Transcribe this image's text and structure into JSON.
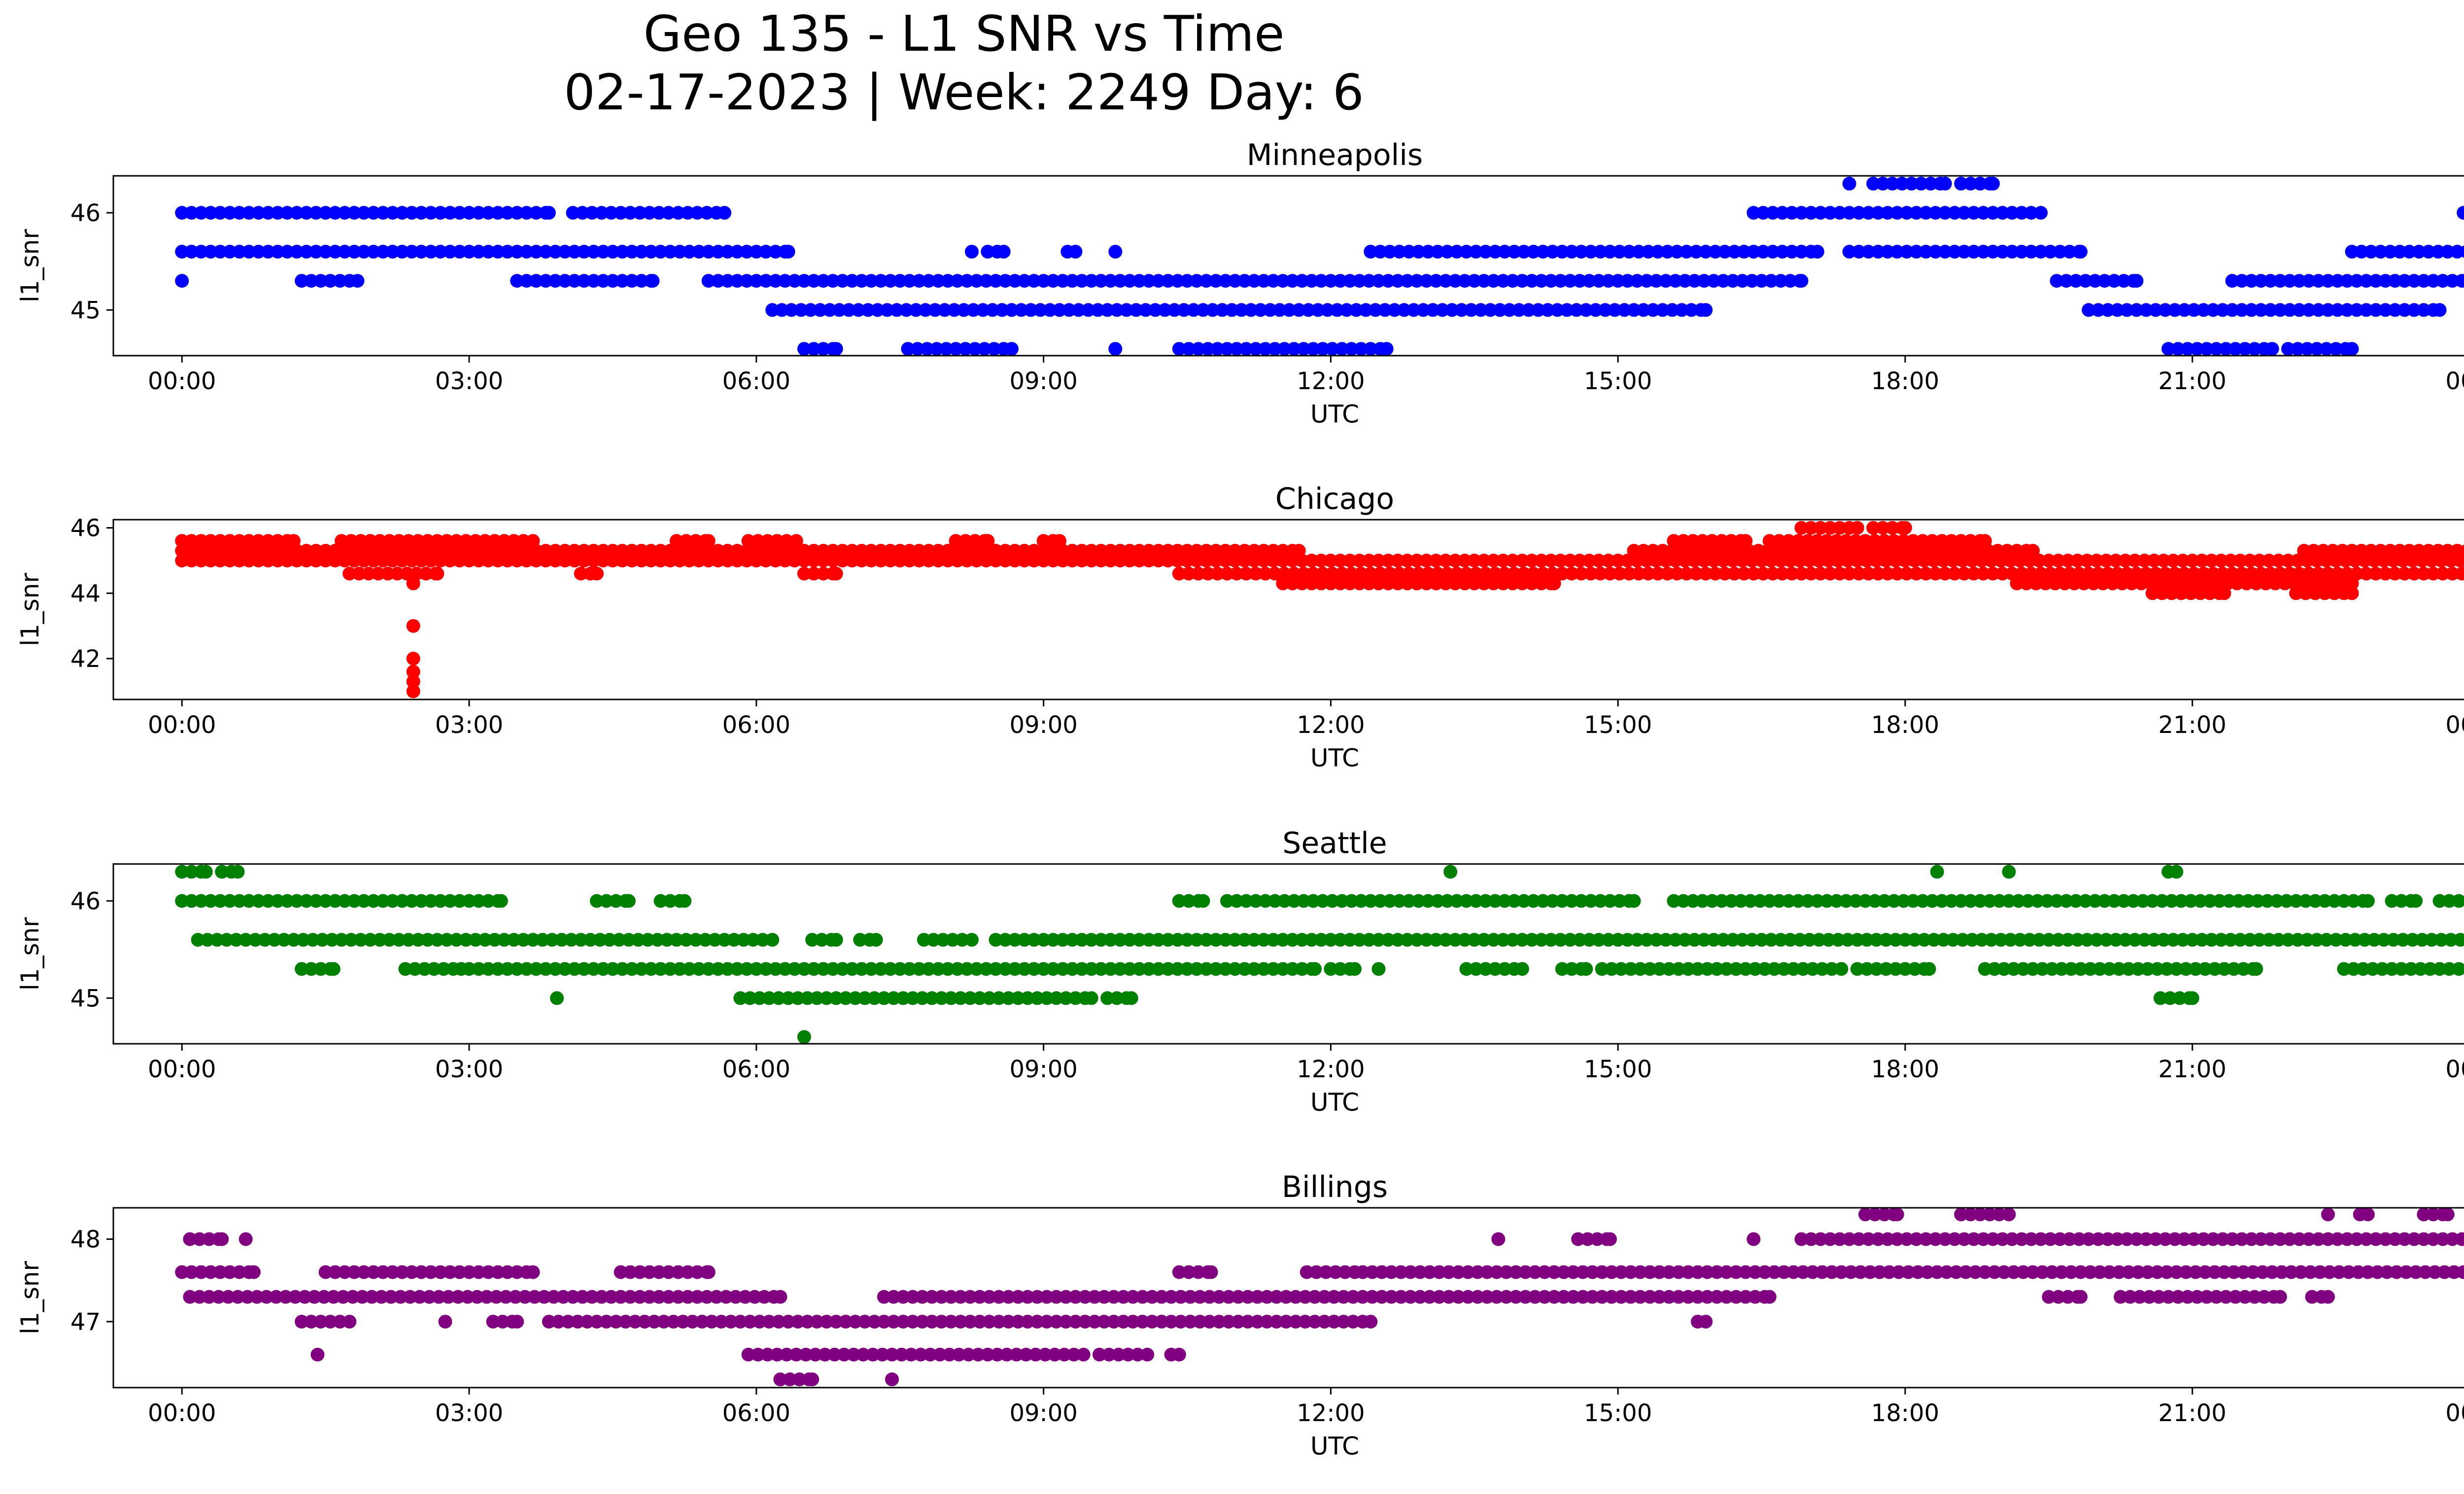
{
  "title": "Geo 135 - L1 SNR vs Time",
  "subtitle": "02-17-2023 | Week: 2249 Day: 6",
  "chart_data": [
    {
      "type": "scatter",
      "title": "Minneapolis",
      "xlabel": "UTC",
      "ylabel": "l1_snr",
      "color": "#0000ff",
      "xlim": [
        "23:17",
        "00:48"
      ],
      "xticks": [
        "00:00",
        "03:00",
        "06:00",
        "09:00",
        "12:00",
        "15:00",
        "18:00",
        "21:00",
        "00:00"
      ],
      "ylim": [
        44.53,
        46.38
      ],
      "yticks": [
        45,
        46
      ],
      "segments": [
        {
          "y": 46.0,
          "x": [
            [
              "00:00",
              "03:50"
            ],
            [
              "04:05",
              "05:40"
            ],
            [
              "16:25",
              "19:25"
            ],
            [
              "23:50",
              "23:50"
            ]
          ]
        },
        {
          "y": 45.6,
          "x": [
            [
              "00:00",
              "06:20"
            ],
            [
              "12:25",
              "17:05"
            ],
            [
              "17:25",
              "19:50"
            ],
            [
              "22:40",
              "24:00"
            ],
            [
              "08:15",
              "08:15"
            ],
            [
              "08:25",
              "08:35"
            ],
            [
              "09:15",
              "09:20"
            ],
            [
              "09:45",
              "09:45"
            ]
          ]
        },
        {
          "y": 45.3,
          "x": [
            [
              "00:00",
              "00:00"
            ],
            [
              "01:15",
              "01:50"
            ],
            [
              "03:30",
              "04:55"
            ],
            [
              "05:30",
              "16:55"
            ],
            [
              "19:35",
              "20:25"
            ],
            [
              "21:25",
              "24:00"
            ]
          ]
        },
        {
          "y": 45.0,
          "x": [
            [
              "06:10",
              "15:55"
            ],
            [
              "19:55",
              "23:35"
            ]
          ]
        },
        {
          "y": 44.6,
          "x": [
            [
              "06:30",
              "06:50"
            ],
            [
              "07:35",
              "08:40"
            ],
            [
              "09:45",
              "09:45"
            ],
            [
              "10:25",
              "12:35"
            ],
            [
              "20:45",
              "21:50"
            ],
            [
              "22:00",
              "22:40"
            ]
          ]
        },
        {
          "y": 46.3,
          "x": [
            [
              "17:25",
              "17:25"
            ],
            [
              "17:40",
              "18:25"
            ],
            [
              "18:35",
              "18:55"
            ]
          ]
        }
      ]
    },
    {
      "type": "scatter",
      "title": "Chicago",
      "xlabel": "UTC",
      "ylabel": "l1_snr",
      "color": "#ff0000",
      "xlim": [
        "23:17",
        "00:48"
      ],
      "xticks": [
        "00:00",
        "03:00",
        "06:00",
        "09:00",
        "12:00",
        "15:00",
        "18:00",
        "21:00",
        "00:00"
      ],
      "ylim": [
        40.75,
        46.25
      ],
      "yticks": [
        42,
        44,
        46
      ],
      "segments": [
        {
          "y": 46.0,
          "x": [
            [
              "16:55",
              "17:30"
            ],
            [
              "17:40",
              "18:00"
            ]
          ]
        },
        {
          "y": 45.6,
          "x": [
            [
              "00:00",
              "01:10"
            ],
            [
              "01:40",
              "03:40"
            ],
            [
              "05:10",
              "05:30"
            ],
            [
              "05:55",
              "06:25"
            ],
            [
              "08:05",
              "08:25"
            ],
            [
              "09:00",
              "09:10"
            ],
            [
              "15:35",
              "16:20"
            ],
            [
              "16:35",
              "18:50"
            ]
          ]
        },
        {
          "y": 45.3,
          "x": [
            [
              "00:00",
              "11:40"
            ],
            [
              "15:10",
              "19:20"
            ],
            [
              "22:10",
              "24:00"
            ]
          ]
        },
        {
          "y": 45.0,
          "x": [
            [
              "00:00",
              "24:00"
            ]
          ]
        },
        {
          "y": 44.6,
          "x": [
            [
              "01:45",
              "02:40"
            ],
            [
              "04:10",
              "04:20"
            ],
            [
              "06:30",
              "06:50"
            ],
            [
              "10:25",
              "24:00"
            ]
          ]
        },
        {
          "y": 44.3,
          "x": [
            [
              "11:30",
              "14:20"
            ],
            [
              "19:10",
              "22:40"
            ]
          ]
        },
        {
          "y": 44.0,
          "x": [
            [
              "20:35",
              "21:20"
            ],
            [
              "22:05",
              "22:40"
            ]
          ]
        },
        {
          "y": 44.3,
          "x": [
            [
              "02:25",
              "02:25"
            ]
          ]
        },
        {
          "y": 43.0,
          "x": [
            [
              "02:25",
              "02:25"
            ]
          ]
        },
        {
          "y": 42.0,
          "x": [
            [
              "02:25",
              "02:25"
            ]
          ]
        },
        {
          "y": 41.6,
          "x": [
            [
              "02:25",
              "02:25"
            ]
          ]
        },
        {
          "y": 41.3,
          "x": [
            [
              "02:25",
              "02:25"
            ]
          ]
        },
        {
          "y": 41.0,
          "x": [
            [
              "02:25",
              "02:25"
            ]
          ]
        }
      ]
    },
    {
      "type": "scatter",
      "title": "Seattle",
      "xlabel": "UTC",
      "ylabel": "l1_snr",
      "color": "#008000",
      "xlim": [
        "23:17",
        "00:48"
      ],
      "xticks": [
        "00:00",
        "03:00",
        "06:00",
        "09:00",
        "12:00",
        "15:00",
        "18:00",
        "21:00",
        "00:00"
      ],
      "ylim": [
        44.53,
        46.38
      ],
      "yticks": [
        45,
        46
      ],
      "segments": [
        {
          "y": 46.3,
          "x": [
            [
              "00:00",
              "00:15"
            ],
            [
              "00:25",
              "00:35"
            ],
            [
              "13:15",
              "13:15"
            ],
            [
              "18:20",
              "18:20"
            ],
            [
              "19:05",
              "19:05"
            ],
            [
              "20:45",
              "20:50"
            ]
          ]
        },
        {
          "y": 46.0,
          "x": [
            [
              "00:00",
              "03:20"
            ],
            [
              "04:20",
              "04:40"
            ],
            [
              "05:00",
              "05:15"
            ],
            [
              "10:25",
              "10:40"
            ],
            [
              "10:55",
              "15:10"
            ],
            [
              "15:35",
              "22:50"
            ],
            [
              "23:05",
              "23:20"
            ],
            [
              "23:35",
              "23:55"
            ]
          ]
        },
        {
          "y": 45.6,
          "x": [
            [
              "00:10",
              "06:10"
            ],
            [
              "06:35",
              "06:50"
            ],
            [
              "07:05",
              "07:15"
            ],
            [
              "07:45",
              "08:15"
            ],
            [
              "08:30",
              "24:00"
            ]
          ]
        },
        {
          "y": 45.3,
          "x": [
            [
              "01:15",
              "01:35"
            ],
            [
              "02:20",
              "02:55"
            ],
            [
              "03:00",
              "11:50"
            ],
            [
              "12:00",
              "12:15"
            ],
            [
              "12:30",
              "12:30"
            ],
            [
              "13:25",
              "14:00"
            ],
            [
              "14:25",
              "14:40"
            ],
            [
              "14:50",
              "17:20"
            ],
            [
              "17:30",
              "18:15"
            ],
            [
              "18:50",
              "21:40"
            ],
            [
              "22:35",
              "24:00"
            ]
          ]
        },
        {
          "y": 45.0,
          "x": [
            [
              "03:55",
              "03:55"
            ],
            [
              "05:50",
              "09:30"
            ],
            [
              "09:40",
              "09:55"
            ],
            [
              "20:40",
              "21:00"
            ]
          ]
        },
        {
          "y": 44.6,
          "x": [
            [
              "06:30",
              "06:30"
            ]
          ]
        }
      ]
    },
    {
      "type": "scatter",
      "title": "Billings",
      "xlabel": "UTC",
      "ylabel": "l1_snr",
      "color": "#800080",
      "xlim": [
        "23:17",
        "00:48"
      ],
      "xticks": [
        "00:00",
        "03:00",
        "06:00",
        "09:00",
        "12:00",
        "15:00",
        "18:00",
        "21:00",
        "00:00"
      ],
      "ylim": [
        46.2,
        48.38
      ],
      "yticks": [
        47,
        48
      ],
      "segments": [
        {
          "y": 48.3,
          "x": [
            [
              "17:35",
              "17:55"
            ],
            [
              "18:35",
              "19:05"
            ],
            [
              "22:25",
              "22:25"
            ],
            [
              "22:45",
              "22:50"
            ],
            [
              "23:25",
              "23:40"
            ]
          ]
        },
        {
          "y": 48.0,
          "x": [
            [
              "00:05",
              "00:25"
            ],
            [
              "00:40",
              "00:40"
            ],
            [
              "13:45",
              "13:45"
            ],
            [
              "14:35",
              "14:55"
            ],
            [
              "16:25",
              "16:25"
            ],
            [
              "16:55",
              "24:00"
            ]
          ]
        },
        {
          "y": 47.6,
          "x": [
            [
              "00:00",
              "00:45"
            ],
            [
              "01:30",
              "03:40"
            ],
            [
              "04:35",
              "05:30"
            ],
            [
              "10:25",
              "10:45"
            ],
            [
              "11:45",
              "12:20"
            ],
            [
              "12:20",
              "24:00"
            ]
          ]
        },
        {
          "y": 47.3,
          "x": [
            [
              "00:05",
              "06:15"
            ],
            [
              "07:20",
              "16:35"
            ],
            [
              "19:30",
              "19:50"
            ],
            [
              "20:15",
              "21:55"
            ],
            [
              "22:15",
              "22:25"
            ]
          ]
        },
        {
          "y": 47.0,
          "x": [
            [
              "01:15",
              "01:45"
            ],
            [
              "02:45",
              "02:45"
            ],
            [
              "03:15",
              "03:30"
            ],
            [
              "03:50",
              "12:25"
            ],
            [
              "15:50",
              "15:55"
            ]
          ]
        },
        {
          "y": 46.6,
          "x": [
            [
              "01:25",
              "01:25"
            ],
            [
              "05:55",
              "09:25"
            ],
            [
              "09:35",
              "10:05"
            ],
            [
              "10:20",
              "10:25"
            ]
          ]
        },
        {
          "y": 46.3,
          "x": [
            [
              "06:15",
              "06:35"
            ],
            [
              "07:25",
              "07:25"
            ]
          ]
        }
      ]
    }
  ]
}
